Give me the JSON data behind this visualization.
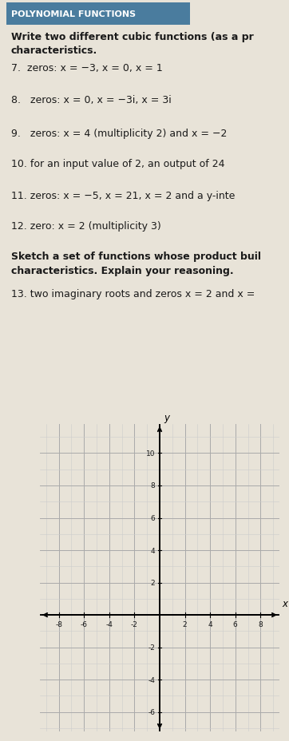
{
  "bg_color": "#e8e3d8",
  "header_bg": "#4a7c9e",
  "header_text": "POLYNOMIAL FUNCTIONS",
  "header_text_color": "#ffffff",
  "intro_line1": "Write two different cubic functions (as a pr",
  "intro_line2": "characteristics.",
  "items": [
    {
      "num": "7.",
      "text": "  zeros: x = −3, x = 0, x = 1"
    },
    {
      "num": "8.",
      "text": "   zeros: x = 0, x = −3i, x = 3i"
    },
    {
      "num": "9.",
      "text": "   zeros: x = 4 (multiplicity 2) and x = −2"
    },
    {
      "num": "10.",
      "text": " for an input value of 2, an output of 24"
    },
    {
      "num": "11.",
      "text": " zeros: x = −5, x = 21, x = 2 and a y-inte"
    },
    {
      "num": "12.",
      "text": " zero: x = 2 (multiplicity 3)"
    }
  ],
  "section2_line1": "Sketch a set of functions whose product buil",
  "section2_line2": "characteristics. Explain your reasoning.",
  "item13": "13. two imaginary roots and zeros x = 2 and x =",
  "grid_x_ticks": [
    -8,
    -6,
    -4,
    -2,
    2,
    4,
    6,
    8
  ],
  "grid_y_ticks": [
    -6,
    -4,
    -2,
    2,
    4,
    6,
    8,
    10
  ],
  "grid_xlim": [
    -9.5,
    9.5
  ],
  "grid_ylim": [
    -7.2,
    11.8
  ],
  "axis_label_x": "x",
  "axis_label_y": "y",
  "text_color": "#1a1a1a",
  "grid_major_color": "#aaaaaa",
  "grid_minor_color": "#cccccc"
}
